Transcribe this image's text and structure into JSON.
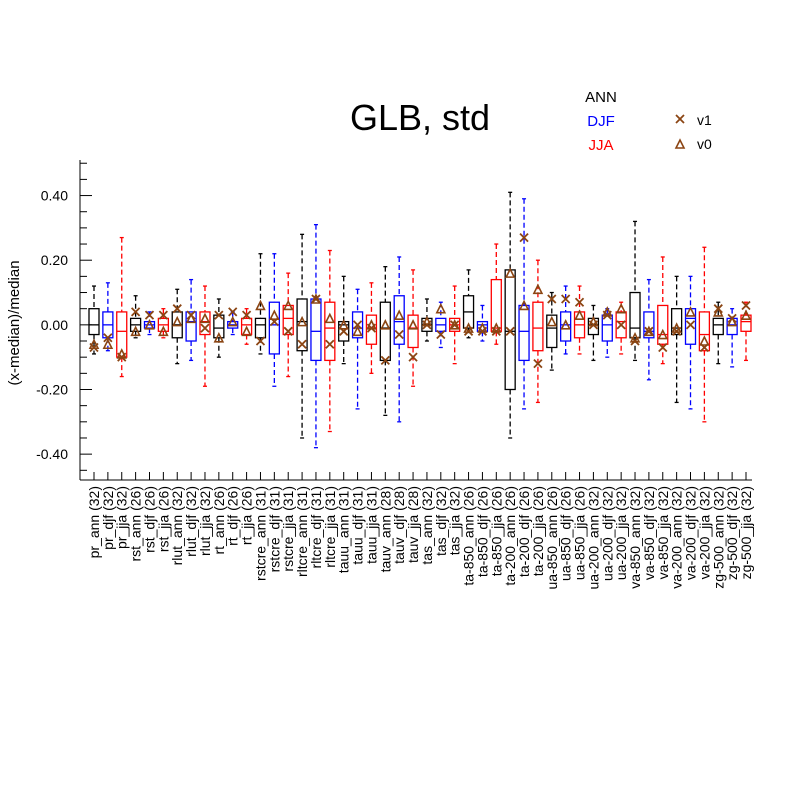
{
  "chart_data": {
    "type": "box",
    "title": "GLB, std",
    "ylabel": "(x-median)/median",
    "xlabel": "",
    "ylim": [
      -0.48,
      0.51
    ],
    "yticks": [
      -0.4,
      -0.2,
      0.0,
      0.2,
      0.4
    ],
    "ytick_labels": [
      "-0.40",
      "-0.20",
      "0.00",
      "0.20",
      "0.40"
    ],
    "legend": {
      "placement": "top-right",
      "seasons": [
        {
          "label": "ANN",
          "color": "#000000"
        },
        {
          "label": "DJF",
          "color": "#0000ff"
        },
        {
          "label": "JJA",
          "color": "#ff0000"
        }
      ],
      "markers": [
        {
          "label": "v1",
          "symbol": "x",
          "color": "#8b4513"
        },
        {
          "label": "v0",
          "symbol": "triangle",
          "color": "#8b4513"
        }
      ]
    },
    "categories": [
      {
        "label": "pr_ann (32)",
        "season": "ann",
        "lw": -0.09,
        "q1": -0.03,
        "med": 0.0,
        "q3": 0.05,
        "hw": 0.12,
        "v1": -0.07,
        "v0": -0.06
      },
      {
        "label": "pr_djf (32)",
        "season": "djf",
        "lw": -0.08,
        "q1": -0.04,
        "med": 0.0,
        "q3": 0.04,
        "hw": 0.13,
        "v1": -0.04,
        "v0": -0.06
      },
      {
        "label": "pr_jja (32)",
        "season": "jja",
        "lw": -0.16,
        "q1": -0.1,
        "med": -0.02,
        "q3": 0.04,
        "hw": 0.27,
        "v1": -0.1,
        "v0": -0.09
      },
      {
        "label": "rst_ann (26)",
        "season": "ann",
        "lw": -0.04,
        "q1": -0.02,
        "med": 0.0,
        "q3": 0.02,
        "hw": 0.09,
        "v1": 0.04,
        "v0": -0.02
      },
      {
        "label": "rst_djf (26)",
        "season": "djf",
        "lw": -0.03,
        "q1": -0.01,
        "med": 0.0,
        "q3": 0.01,
        "hw": 0.04,
        "v1": 0.03,
        "v0": 0.0
      },
      {
        "label": "rst_jja (26)",
        "season": "jja",
        "lw": -0.04,
        "q1": -0.02,
        "med": 0.0,
        "q3": 0.02,
        "hw": 0.05,
        "v1": 0.03,
        "v0": -0.02
      },
      {
        "label": "rlut_ann (32)",
        "season": "ann",
        "lw": -0.12,
        "q1": -0.04,
        "med": 0.0,
        "q3": 0.04,
        "hw": 0.11,
        "v1": 0.05,
        "v0": 0.01
      },
      {
        "label": "rlut_djf (32)",
        "season": "djf",
        "lw": -0.11,
        "q1": -0.05,
        "med": 0.01,
        "q3": 0.04,
        "hw": 0.14,
        "v1": 0.03,
        "v0": 0.02
      },
      {
        "label": "rlut_jja (32)",
        "season": "jja",
        "lw": -0.19,
        "q1": -0.03,
        "med": 0.01,
        "q3": 0.04,
        "hw": 0.12,
        "v1": -0.01,
        "v0": 0.02
      },
      {
        "label": "rt_ann (26)",
        "season": "ann",
        "lw": -0.1,
        "q1": -0.04,
        "med": -0.01,
        "q3": 0.03,
        "hw": 0.08,
        "v1": 0.03,
        "v0": -0.04
      },
      {
        "label": "rt_djf (26)",
        "season": "djf",
        "lw": -0.03,
        "q1": -0.01,
        "med": 0.0,
        "q3": 0.01,
        "hw": 0.04,
        "v1": 0.04,
        "v0": 0.01
      },
      {
        "label": "rt_jja (26)",
        "season": "jja",
        "lw": -0.06,
        "q1": -0.03,
        "med": 0.0,
        "q3": 0.02,
        "hw": 0.05,
        "v1": 0.03,
        "v0": -0.02
      },
      {
        "label": "rstcre_ann (31)",
        "season": "ann",
        "lw": -0.09,
        "q1": -0.04,
        "med": 0.0,
        "q3": 0.02,
        "hw": 0.22,
        "v1": -0.05,
        "v0": 0.06
      },
      {
        "label": "rstcre_djf (31)",
        "season": "djf",
        "lw": -0.19,
        "q1": -0.09,
        "med": 0.0,
        "q3": 0.07,
        "hw": 0.22,
        "v1": 0.01,
        "v0": 0.03
      },
      {
        "label": "rstcre_jja (31)",
        "season": "jja",
        "lw": -0.16,
        "q1": -0.03,
        "med": 0.02,
        "q3": 0.06,
        "hw": 0.16,
        "v1": -0.02,
        "v0": 0.06
      },
      {
        "label": "rltcre_ann (31)",
        "season": "ann",
        "lw": -0.35,
        "q1": -0.08,
        "med": 0.01,
        "q3": 0.08,
        "hw": 0.28,
        "v1": -0.06,
        "v0": 0.01
      },
      {
        "label": "rltcre_djf (31)",
        "season": "djf",
        "lw": -0.38,
        "q1": -0.11,
        "med": -0.02,
        "q3": 0.08,
        "hw": 0.31,
        "v1": 0.08,
        "v0": 0.08
      },
      {
        "label": "rltcre_jja (31)",
        "season": "jja",
        "lw": -0.33,
        "q1": -0.11,
        "med": -0.01,
        "q3": 0.07,
        "hw": 0.23,
        "v1": -0.06,
        "v0": 0.02
      },
      {
        "label": "tauu_ann (31)",
        "season": "ann",
        "lw": -0.12,
        "q1": -0.05,
        "med": 0.0,
        "q3": 0.01,
        "hw": 0.15,
        "v1": -0.02,
        "v0": 0.0
      },
      {
        "label": "tauu_djf (31)",
        "season": "djf",
        "lw": -0.26,
        "q1": -0.04,
        "med": -0.01,
        "q3": 0.04,
        "hw": 0.11,
        "v1": 0.0,
        "v0": -0.02
      },
      {
        "label": "tauu_jja (31)",
        "season": "jja",
        "lw": -0.15,
        "q1": -0.06,
        "med": -0.01,
        "q3": 0.03,
        "hw": 0.13,
        "v1": -0.01,
        "v0": 0.0
      },
      {
        "label": "tauv_ann (28)",
        "season": "ann",
        "lw": -0.28,
        "q1": -0.11,
        "med": -0.01,
        "q3": 0.07,
        "hw": 0.18,
        "v1": -0.11,
        "v0": 0.0
      },
      {
        "label": "tauv_djf (28)",
        "season": "djf",
        "lw": -0.3,
        "q1": -0.06,
        "med": 0.01,
        "q3": 0.09,
        "hw": 0.21,
        "v1": -0.03,
        "v0": 0.03
      },
      {
        "label": "tauv_jja (28)",
        "season": "jja",
        "lw": -0.19,
        "q1": -0.07,
        "med": -0.01,
        "q3": 0.03,
        "hw": 0.17,
        "v1": -0.1,
        "v0": 0.0
      },
      {
        "label": "tas_ann (32)",
        "season": "ann",
        "lw": -0.05,
        "q1": -0.02,
        "med": 0.0,
        "q3": 0.02,
        "hw": 0.08,
        "v1": 0.0,
        "v0": 0.01
      },
      {
        "label": "tas_djf (32)",
        "season": "djf",
        "lw": -0.07,
        "q1": -0.02,
        "med": 0.0,
        "q3": 0.02,
        "hw": 0.07,
        "v1": -0.03,
        "v0": 0.05
      },
      {
        "label": "tas_jja (32)",
        "season": "jja",
        "lw": -0.12,
        "q1": -0.02,
        "med": 0.0,
        "q3": 0.02,
        "hw": 0.12,
        "v1": 0.0,
        "v0": 0.0
      },
      {
        "label": "ta-850_ann (26)",
        "season": "ann",
        "lw": -0.04,
        "q1": -0.01,
        "med": 0.04,
        "q3": 0.09,
        "hw": 0.17,
        "v1": -0.02,
        "v0": -0.01
      },
      {
        "label": "ta-850_djf (26)",
        "season": "djf",
        "lw": -0.05,
        "q1": -0.02,
        "med": 0.0,
        "q3": 0.01,
        "hw": 0.06,
        "v1": -0.02,
        "v0": -0.01
      },
      {
        "label": "ta-850_jja (26)",
        "season": "jja",
        "lw": -0.06,
        "q1": -0.02,
        "med": -0.01,
        "q3": 0.14,
        "hw": 0.25,
        "v1": -0.02,
        "v0": -0.01
      },
      {
        "label": "ta-200_ann (26)",
        "season": "ann",
        "lw": -0.35,
        "q1": -0.2,
        "med": -0.02,
        "q3": 0.17,
        "hw": 0.41,
        "v1": -0.02,
        "v0": 0.16
      },
      {
        "label": "ta-200_djf (26)",
        "season": "djf",
        "lw": -0.26,
        "q1": -0.11,
        "med": -0.02,
        "q3": 0.06,
        "hw": 0.39,
        "v1": 0.27,
        "v0": 0.06
      },
      {
        "label": "ta-200_jja (26)",
        "season": "jja",
        "lw": -0.24,
        "q1": -0.08,
        "med": -0.01,
        "q3": 0.07,
        "hw": 0.2,
        "v1": -0.12,
        "v0": 0.11
      },
      {
        "label": "ua-850_ann (26)",
        "season": "ann",
        "lw": -0.14,
        "q1": -0.07,
        "med": -0.01,
        "q3": 0.03,
        "hw": 0.1,
        "v1": 0.08,
        "v0": 0.01
      },
      {
        "label": "ua-850_djf (26)",
        "season": "djf",
        "lw": -0.09,
        "q1": -0.05,
        "med": 0.0,
        "q3": 0.04,
        "hw": 0.12,
        "v1": 0.08,
        "v0": 0.0
      },
      {
        "label": "ua-850_jja (26)",
        "season": "jja",
        "lw": -0.09,
        "q1": -0.04,
        "med": 0.0,
        "q3": 0.04,
        "hw": 0.12,
        "v1": 0.07,
        "v0": 0.03
      },
      {
        "label": "ua-200_ann (32)",
        "season": "ann",
        "lw": -0.11,
        "q1": -0.03,
        "med": 0.0,
        "q3": 0.02,
        "hw": 0.06,
        "v1": 0.0,
        "v0": 0.01
      },
      {
        "label": "ua-200_djf (32)",
        "season": "djf",
        "lw": -0.1,
        "q1": -0.05,
        "med": 0.0,
        "q3": 0.03,
        "hw": 0.05,
        "v1": 0.03,
        "v0": 0.04
      },
      {
        "label": "ua-200_jja (32)",
        "season": "jja",
        "lw": -0.09,
        "q1": -0.04,
        "med": 0.01,
        "q3": 0.04,
        "hw": 0.07,
        "v1": 0.0,
        "v0": 0.05
      },
      {
        "label": "va-850_ann (32)",
        "season": "ann",
        "lw": -0.11,
        "q1": -0.04,
        "med": -0.01,
        "q3": 0.1,
        "hw": 0.32,
        "v1": -0.05,
        "v0": -0.04
      },
      {
        "label": "va-850_djf (32)",
        "season": "djf",
        "lw": -0.17,
        "q1": -0.04,
        "med": -0.02,
        "q3": 0.04,
        "hw": 0.14,
        "v1": -0.02,
        "v0": -0.02
      },
      {
        "label": "va-850_jja (32)",
        "season": "jja",
        "lw": -0.12,
        "q1": -0.06,
        "med": -0.03,
        "q3": 0.06,
        "hw": 0.21,
        "v1": -0.07,
        "v0": -0.03
      },
      {
        "label": "va-200_ann (32)",
        "season": "ann",
        "lw": -0.24,
        "q1": -0.03,
        "med": -0.01,
        "q3": 0.05,
        "hw": 0.15,
        "v1": -0.02,
        "v0": -0.01
      },
      {
        "label": "va-200_djf (32)",
        "season": "djf",
        "lw": -0.26,
        "q1": -0.06,
        "med": 0.02,
        "q3": 0.05,
        "hw": 0.15,
        "v1": 0.0,
        "v0": 0.04
      },
      {
        "label": "va-200_jja (32)",
        "season": "jja",
        "lw": -0.3,
        "q1": -0.08,
        "med": -0.03,
        "q3": 0.04,
        "hw": 0.24,
        "v1": -0.07,
        "v0": -0.05
      },
      {
        "label": "zg-500_ann (32)",
        "season": "ann",
        "lw": -0.12,
        "q1": -0.03,
        "med": 0.0,
        "q3": 0.02,
        "hw": 0.07,
        "v1": 0.05,
        "v0": 0.04
      },
      {
        "label": "zg-500_djf (32)",
        "season": "djf",
        "lw": -0.13,
        "q1": -0.03,
        "med": 0.0,
        "q3": 0.02,
        "hw": 0.05,
        "v1": 0.02,
        "v0": 0.01
      },
      {
        "label": "zg-500_jja (32)",
        "season": "jja",
        "lw": -0.11,
        "q1": -0.02,
        "med": 0.01,
        "q3": 0.03,
        "hw": 0.07,
        "v1": 0.06,
        "v0": 0.03
      }
    ]
  }
}
